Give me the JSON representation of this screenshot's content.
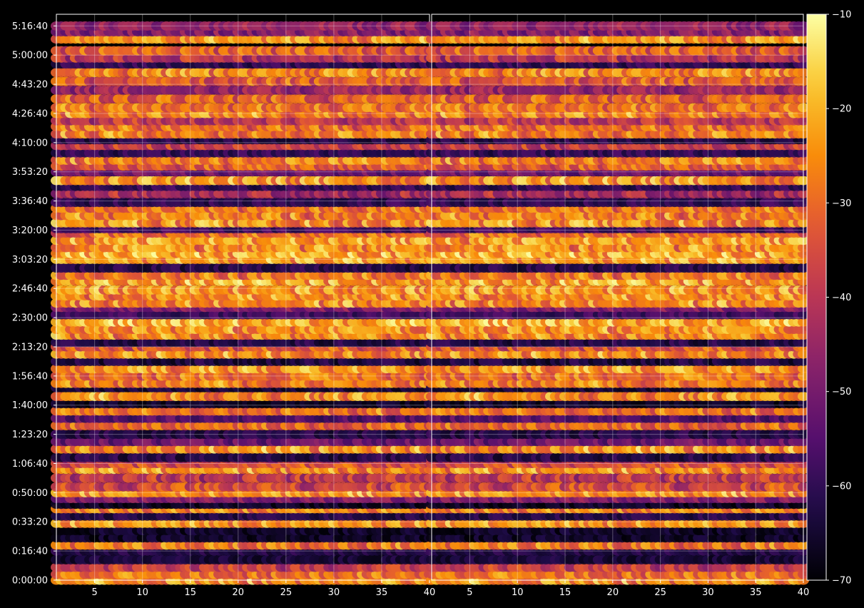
{
  "chart_data": {
    "type": "heatmap",
    "title": "",
    "xlabel": "",
    "ylabel": "",
    "panels": [
      {
        "name": "",
        "xlim": [
          1,
          40
        ],
        "x_ticks": [
          5,
          10,
          15,
          20,
          25,
          30,
          35,
          40
        ]
      },
      {
        "name": "",
        "xlim": [
          1,
          40
        ],
        "x_ticks": [
          5,
          10,
          15,
          20,
          25,
          30,
          35,
          40
        ]
      }
    ],
    "y_axis": {
      "unit": "h:mm:ss",
      "ylim_seconds": [
        0,
        19400
      ],
      "ticks_seconds": [
        0,
        1000,
        2000,
        3000,
        4000,
        5000,
        6000,
        7000,
        8000,
        9000,
        10000,
        11000,
        12000,
        13000,
        14000,
        15000,
        16000,
        17000,
        18000,
        19000
      ],
      "tick_labels": [
        "0:00:00",
        "0:16:40",
        "0:33:20",
        "0:50:00",
        "1:06:40",
        "1:23:20",
        "1:40:00",
        "1:56:40",
        "2:13:20",
        "2:30:00",
        "2:46:40",
        "3:03:20",
        "3:20:00",
        "3:36:40",
        "3:53:20",
        "4:10:00",
        "4:26:40",
        "4:43:20",
        "5:00:00",
        "5:16:40"
      ]
    },
    "colorbar": {
      "colormap": "inferno",
      "range": [
        -70,
        -10
      ],
      "ticks": [
        -70,
        -60,
        -50,
        -40,
        -30,
        -20,
        -10
      ],
      "tick_labels": [
        "−70",
        "−60",
        "−50",
        "−40",
        "−30",
        "−20",
        "−10"
      ]
    },
    "rows_seconds": [
      0,
      200,
      440,
      700,
      1000,
      1200,
      1450,
      1700,
      1950,
      2200,
      2450,
      2600,
      2800,
      3000,
      3200,
      3500,
      3800,
      4000,
      4150,
      4200,
      4500,
      4750,
      5000,
      5300,
      5550,
      5800,
      6050,
      6300,
      6600,
      6750,
      7000,
      7250,
      7500,
      7750,
      8000,
      8150,
      8400,
      8600,
      8850,
      9100,
      9350,
      9500,
      9750,
      9950,
      10250,
      10450,
      10700,
      11000,
      11200,
      11400,
      11650,
      11900,
      12050,
      12250,
      12500,
      12750,
      12950,
      13250,
      13500,
      13700,
      14000,
      14200,
      14400,
      14650,
      14900,
      15100,
      15300,
      15550,
      15750,
      16000,
      16200,
      16500,
      16800,
      17100,
      17400,
      17700,
      17900,
      18150,
      18550,
      18800,
      19000
    ],
    "row_mean_db": [
      -24,
      -29,
      -38,
      -64,
      -62,
      -28,
      -66,
      -66,
      -24,
      -62,
      -26,
      -66,
      -48,
      -24,
      -36,
      -40,
      -25,
      -35,
      -40,
      -62,
      -24,
      -52,
      -62,
      -31,
      -55,
      -28,
      -66,
      -24,
      -64,
      -27,
      -30,
      -25,
      -63,
      -25,
      -33,
      -62,
      -26,
      -25,
      -20,
      -58,
      -48,
      -26,
      -26,
      -25,
      -22,
      -28,
      -62,
      -22,
      -22,
      -26,
      -24,
      -29,
      -58,
      -24,
      -27,
      -29,
      -60,
      -44,
      -60,
      -24,
      -52,
      -32,
      -27,
      -60,
      -38,
      -62,
      -27,
      -30,
      -40,
      -26,
      -28,
      -32,
      -46,
      -32,
      -26,
      -60,
      -40,
      -32,
      -24,
      -48,
      -46
    ],
    "row_texture": [
      0.9,
      0.7,
      0.6,
      0.1,
      0.1,
      0.8,
      0.1,
      0.1,
      0.9,
      0.1,
      0.8,
      0.1,
      0.3,
      0.9,
      0.7,
      0.6,
      0.9,
      0.6,
      0.5,
      0.2,
      0.9,
      0.4,
      0.2,
      0.7,
      0.3,
      0.8,
      0.1,
      0.9,
      0.1,
      0.9,
      0.8,
      0.9,
      0.2,
      0.9,
      0.8,
      0.2,
      0.9,
      0.9,
      0.9,
      0.2,
      0.4,
      0.9,
      0.9,
      0.9,
      0.9,
      0.9,
      0.2,
      0.9,
      0.9,
      0.9,
      0.9,
      0.8,
      0.2,
      0.9,
      0.9,
      0.8,
      0.2,
      0.6,
      0.2,
      0.9,
      0.4,
      0.8,
      0.9,
      0.2,
      0.6,
      0.2,
      0.9,
      0.8,
      0.6,
      0.9,
      0.9,
      0.8,
      0.5,
      0.8,
      0.9,
      0.2,
      0.6,
      0.8,
      0.9,
      0.5,
      0.5
    ],
    "grid": true,
    "legend": "none",
    "colors": {
      "background": "#000000",
      "grid": "#ffffff",
      "text": "#ffffff"
    }
  }
}
